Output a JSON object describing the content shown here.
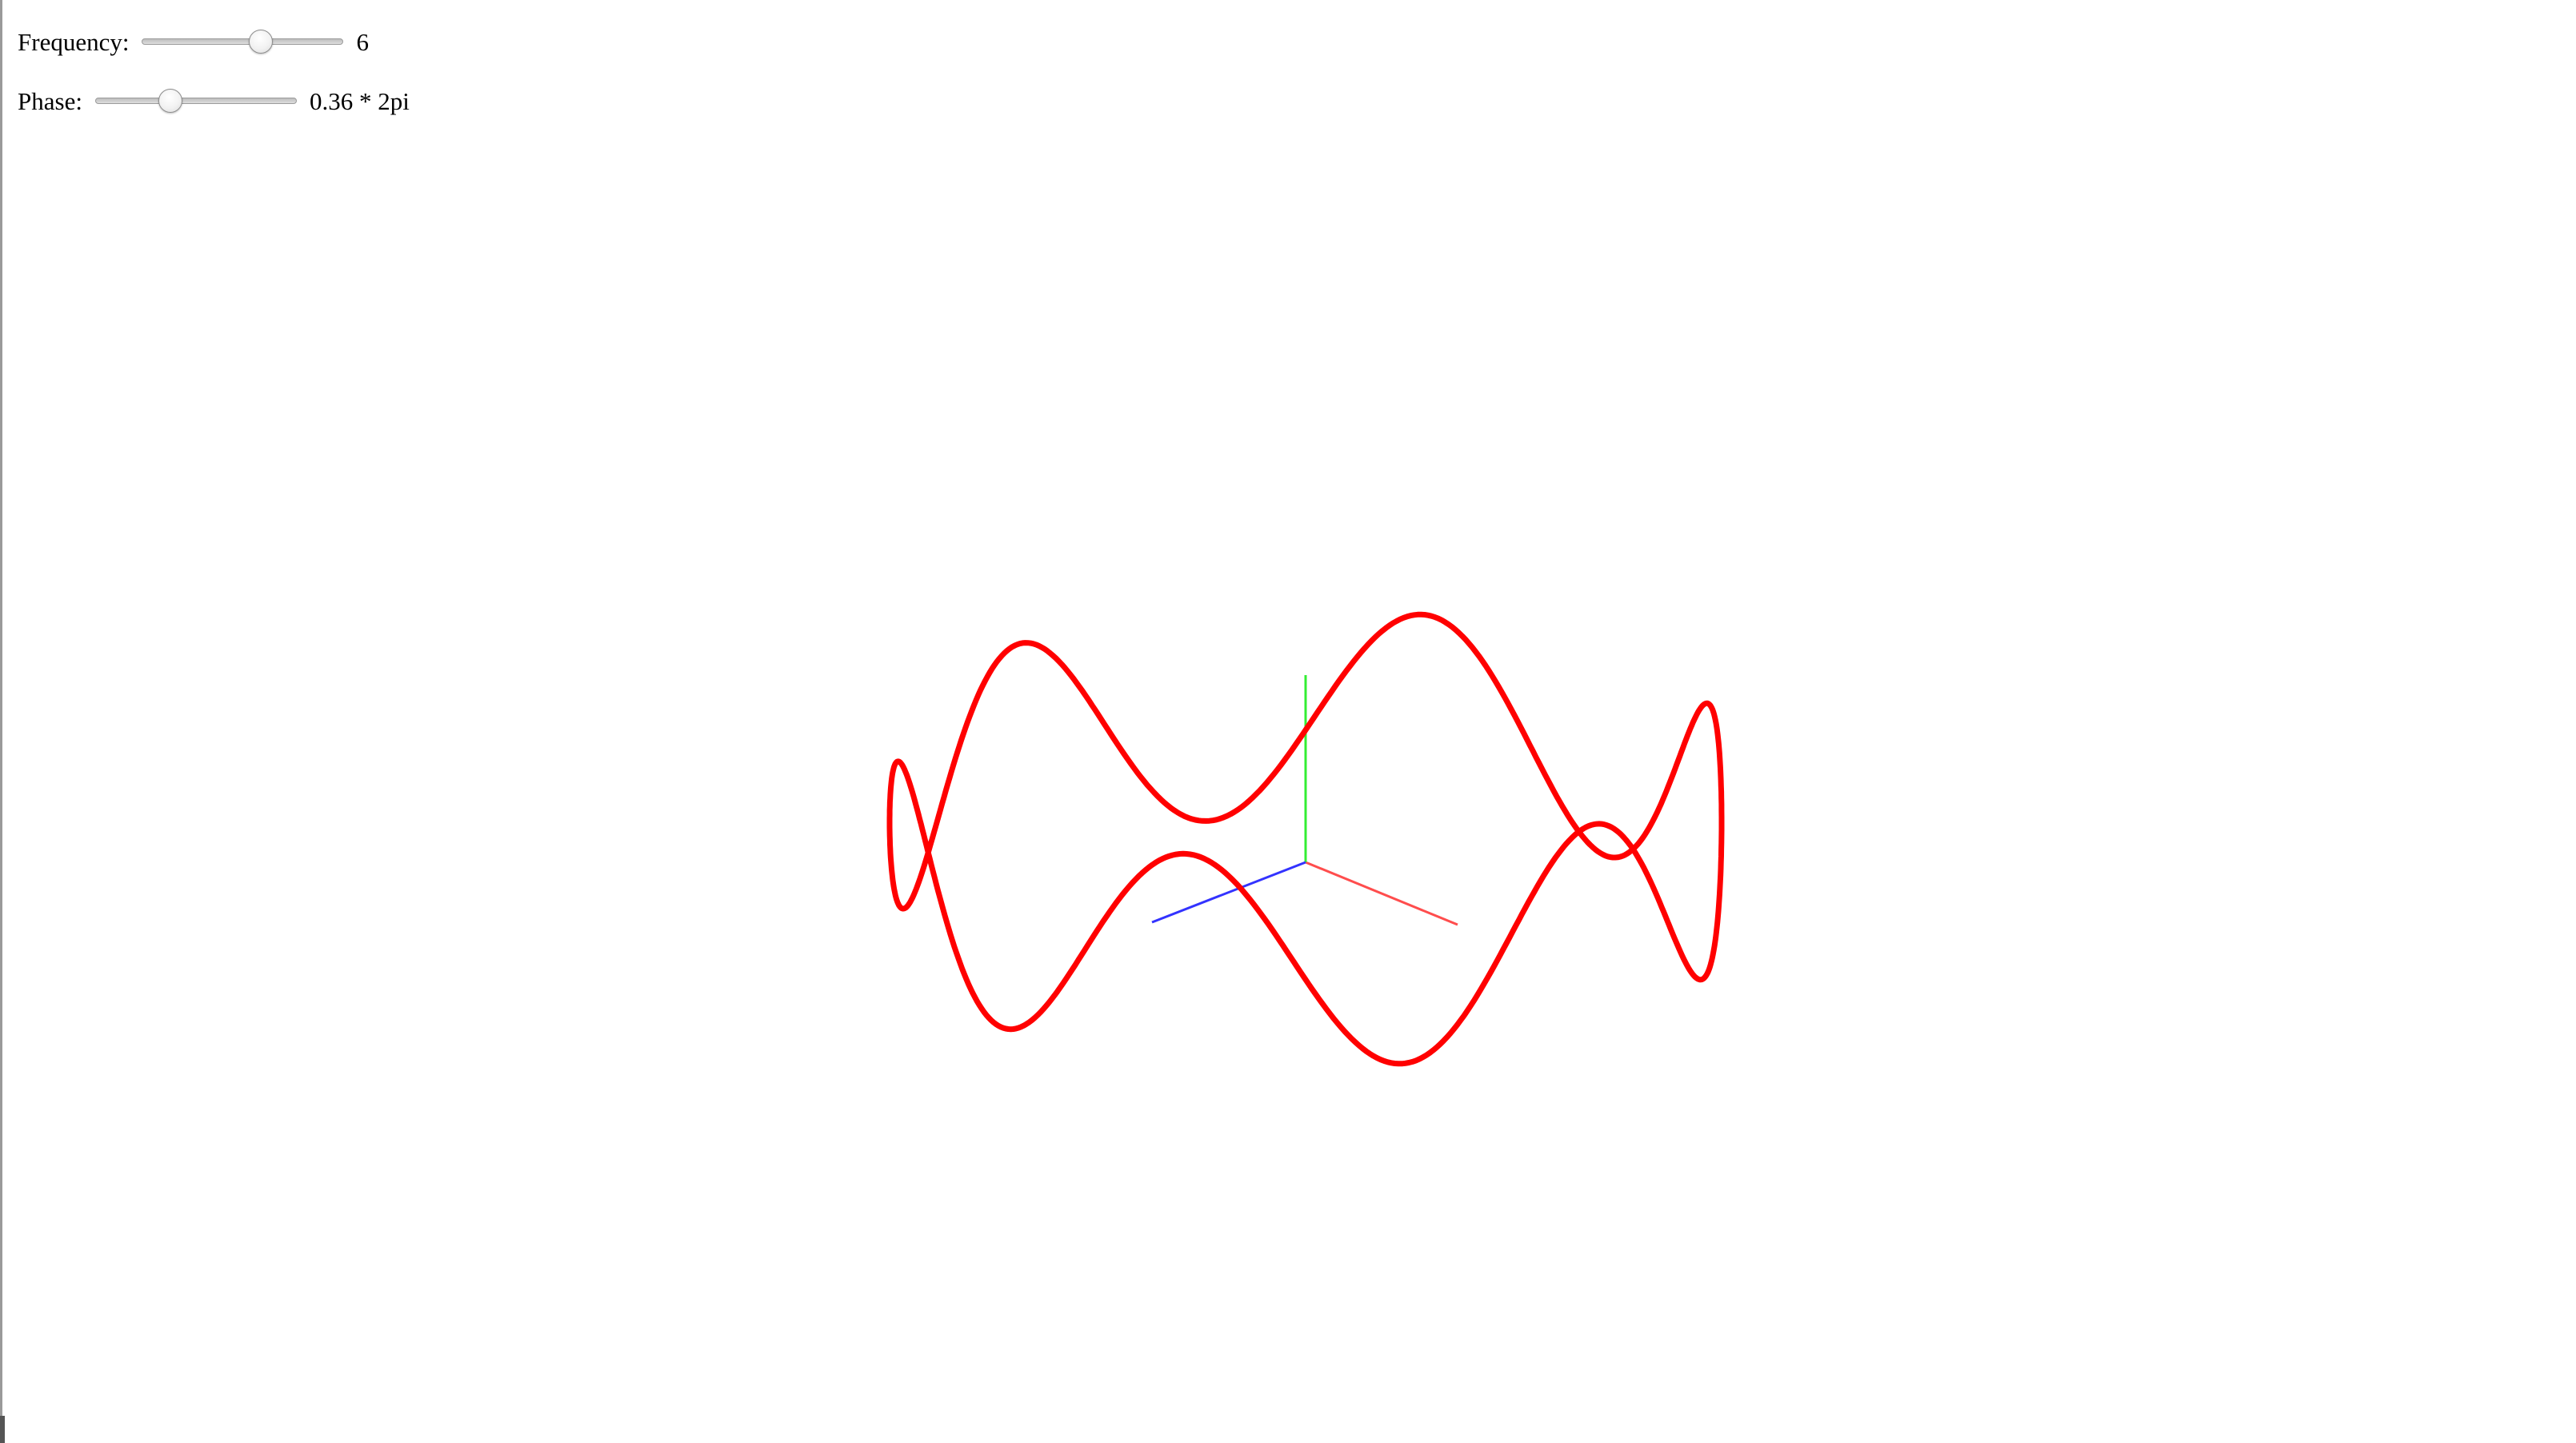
{
  "controls": {
    "frequency": {
      "label": "Frequency:",
      "value_text": "6",
      "min": 0,
      "max": 10,
      "value": 6
    },
    "phase": {
      "label": "Phase:",
      "value_text": "0.36 * 2pi",
      "min": 0,
      "max": 1,
      "value": 0.36
    }
  },
  "scene": {
    "curve_color": "#ff0000",
    "axes": {
      "x_color": "#ff4d4d",
      "y_color": "#33ee33",
      "z_color": "#3333ff"
    }
  }
}
